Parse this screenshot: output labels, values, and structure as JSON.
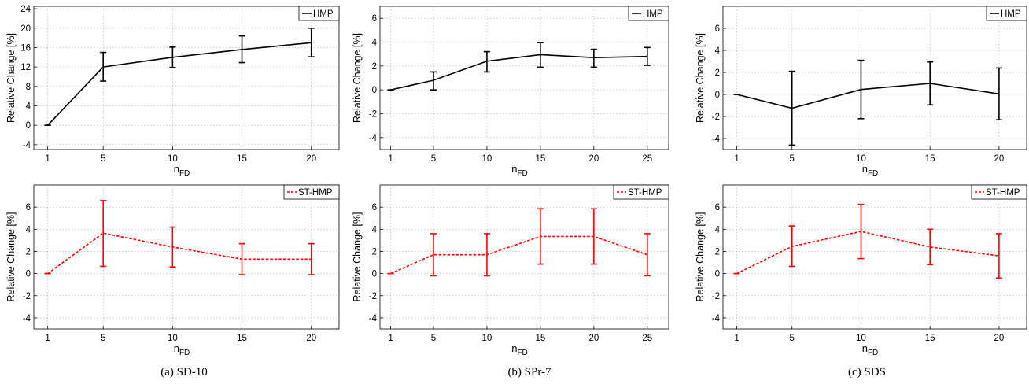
{
  "chart_data": [
    {
      "type": "line",
      "panel": "a",
      "row": "top",
      "ylabel": "Relative Change [%]",
      "xlabel": "n",
      "xlabel_sub": "FD",
      "legend": "top-right",
      "grid": true,
      "ylim": [
        -5,
        24.5
      ],
      "yticks": [
        -4,
        0,
        4,
        8,
        12,
        16,
        20,
        24
      ],
      "xlim": [
        0,
        22
      ],
      "xticks": [
        1,
        5,
        10,
        15,
        20
      ],
      "series": [
        {
          "name": "HMP",
          "color": "#000000",
          "dash": "solid",
          "x": [
            1,
            5,
            10,
            15,
            20
          ],
          "y": [
            0,
            12,
            14,
            15.6,
            17
          ],
          "err_low": [
            0,
            9.1,
            11.9,
            12.9,
            14.1
          ],
          "err_high": [
            0,
            15,
            16.1,
            18.4,
            20
          ]
        }
      ]
    },
    {
      "type": "line",
      "panel": "b",
      "row": "top",
      "ylabel": "Relative Change [%]",
      "xlabel": "n",
      "xlabel_sub": "FD",
      "legend": "top-right",
      "grid": true,
      "ylim": [
        -5,
        7
      ],
      "yticks": [
        -4,
        -2,
        0,
        2,
        4,
        6
      ],
      "xlim": [
        0,
        27
      ],
      "xticks": [
        1,
        5,
        10,
        15,
        20,
        25
      ],
      "series": [
        {
          "name": "HMP",
          "color": "#000000",
          "dash": "solid",
          "x": [
            1,
            5,
            10,
            15,
            20,
            25
          ],
          "y": [
            0,
            0.8,
            2.4,
            2.95,
            2.7,
            2.8
          ],
          "err_low": [
            0,
            0,
            1.5,
            1.9,
            1.9,
            2.05
          ],
          "err_high": [
            0,
            1.5,
            3.2,
            3.95,
            3.4,
            3.55
          ]
        }
      ]
    },
    {
      "type": "line",
      "panel": "c",
      "row": "top",
      "ylabel": "Relative Change [%]",
      "xlabel": "n",
      "xlabel_sub": "FD",
      "legend": "top-right",
      "grid": true,
      "ylim": [
        -5,
        8
      ],
      "yticks": [
        -4,
        -2,
        0,
        2,
        4,
        6
      ],
      "xlim": [
        0,
        22
      ],
      "xticks": [
        1,
        5,
        10,
        15,
        20
      ],
      "series": [
        {
          "name": "HMP",
          "color": "#000000",
          "dash": "solid",
          "x": [
            1,
            5,
            10,
            15,
            20
          ],
          "y": [
            0,
            -1.25,
            0.45,
            1,
            0.05
          ],
          "err_low": [
            0,
            -4.6,
            -2.2,
            -0.95,
            -2.3
          ],
          "err_high": [
            0,
            2.1,
            3.1,
            2.95,
            2.4
          ]
        }
      ]
    },
    {
      "type": "line",
      "panel": "a",
      "row": "bottom",
      "ylabel": "Relative Change [%]",
      "xlabel": "n",
      "xlabel_sub": "FD",
      "legend": "top-right",
      "grid": true,
      "ylim": [
        -5,
        8
      ],
      "yticks": [
        -4,
        -2,
        0,
        2,
        4,
        6
      ],
      "xlim": [
        0,
        22
      ],
      "xticks": [
        1,
        5,
        10,
        15,
        20
      ],
      "series": [
        {
          "name": "ST-HMP",
          "color": "#ff0000",
          "dash": "dashed",
          "x": [
            1,
            5,
            10,
            15,
            20
          ],
          "y": [
            0,
            3.65,
            2.4,
            1.3,
            1.3
          ],
          "err_low": [
            0,
            0.65,
            0.6,
            -0.1,
            -0.1
          ],
          "err_high": [
            0,
            6.6,
            4.2,
            2.7,
            2.7
          ]
        }
      ]
    },
    {
      "type": "line",
      "panel": "b",
      "row": "bottom",
      "ylabel": "Relative Change [%]",
      "xlabel": "n",
      "xlabel_sub": "FD",
      "legend": "top-right",
      "grid": true,
      "ylim": [
        -5,
        8
      ],
      "yticks": [
        -4,
        -2,
        0,
        2,
        4,
        6
      ],
      "xlim": [
        0,
        27
      ],
      "xticks": [
        1,
        5,
        10,
        15,
        20,
        25
      ],
      "series": [
        {
          "name": "ST-HMP",
          "color": "#ff0000",
          "dash": "dashed",
          "x": [
            1,
            5,
            10,
            15,
            20,
            25
          ],
          "y": [
            0,
            1.7,
            1.7,
            3.35,
            3.35,
            1.7
          ],
          "err_low": [
            0,
            -0.2,
            -0.2,
            0.85,
            0.85,
            -0.2
          ],
          "err_high": [
            0,
            3.6,
            3.6,
            5.85,
            5.85,
            3.6
          ]
        }
      ]
    },
    {
      "type": "line",
      "panel": "c",
      "row": "bottom",
      "ylabel": "Relative Change [%]",
      "xlabel": "n",
      "xlabel_sub": "FD",
      "legend": "top-right",
      "grid": true,
      "ylim": [
        -5,
        8
      ],
      "yticks": [
        -4,
        -2,
        0,
        2,
        4,
        6
      ],
      "xlim": [
        0,
        22
      ],
      "xticks": [
        1,
        5,
        10,
        15,
        20
      ],
      "series": [
        {
          "name": "ST-HMP",
          "color": "#ff0000",
          "dash": "dashed",
          "x": [
            1,
            5,
            10,
            15,
            20
          ],
          "y": [
            0,
            2.45,
            3.8,
            2.4,
            1.6
          ],
          "err_low": [
            0,
            0.65,
            1.35,
            0.8,
            -0.4
          ],
          "err_high": [
            0,
            4.3,
            6.25,
            4,
            3.6
          ]
        }
      ]
    }
  ],
  "captions": {
    "a": "(a)  SD-10",
    "b": "(b)  SPr-7",
    "c": "(c)  SDS"
  }
}
